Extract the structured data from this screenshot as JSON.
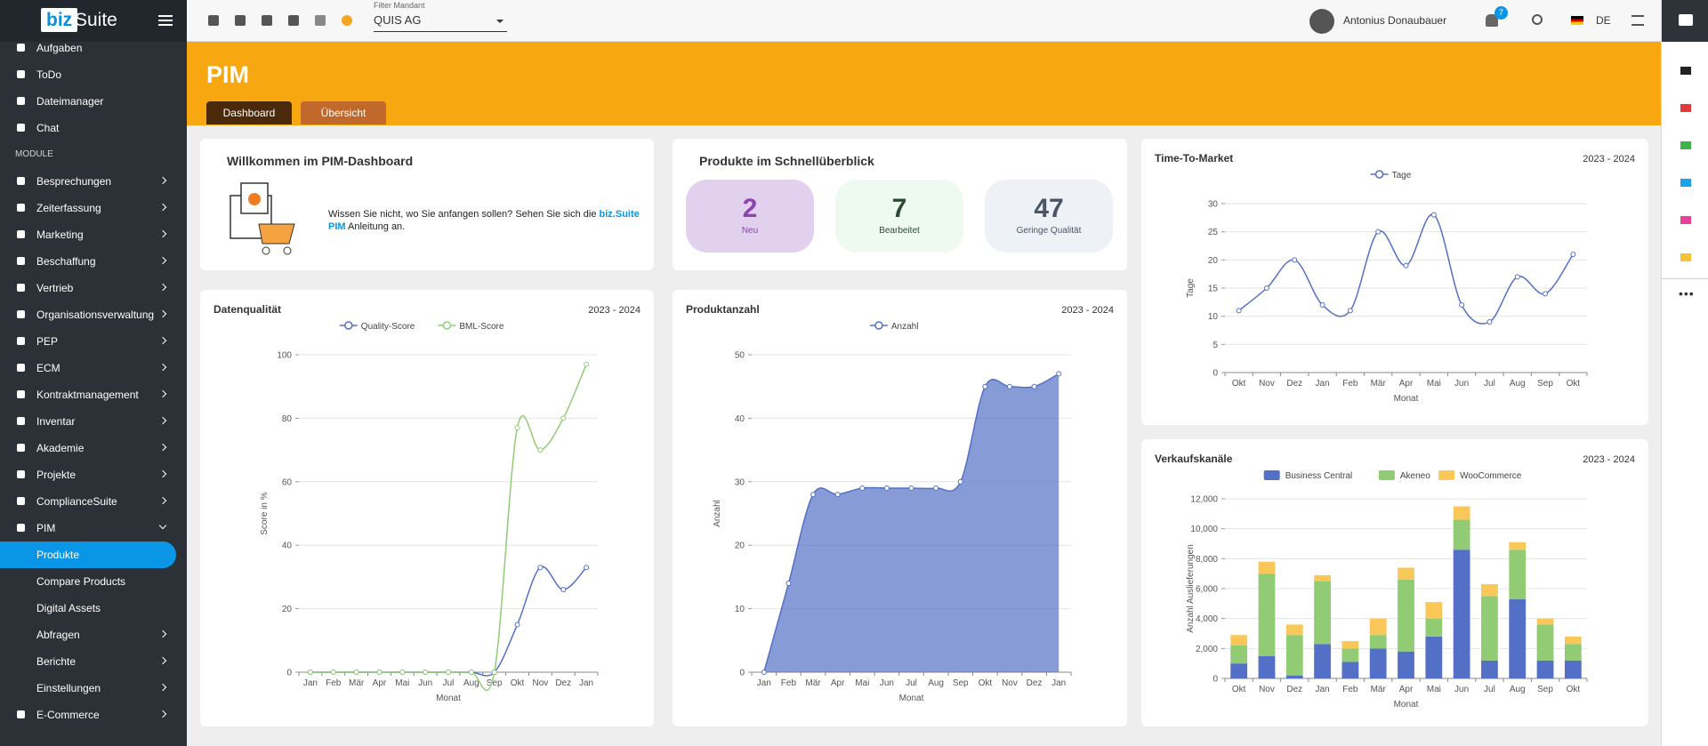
{
  "topbar": {
    "logo_left": "biz",
    "logo_right": "Suite",
    "filter_label": "Filter Mandant",
    "filter_value": "QUIS AG",
    "user": "Antonius Donaubauer",
    "notifications": "7",
    "language": "DE"
  },
  "sidebar": {
    "items": [
      {
        "label": "Aufgaben"
      },
      {
        "label": "ToDo"
      },
      {
        "label": "Dateimanager"
      },
      {
        "label": "Chat"
      },
      {
        "label": "MODULE",
        "section": true
      },
      {
        "label": "Besprechungen",
        "chevron": "right"
      },
      {
        "label": "Zeiterfassung",
        "chevron": "right"
      },
      {
        "label": "Marketing",
        "chevron": "right"
      },
      {
        "label": "Beschaffung",
        "chevron": "right"
      },
      {
        "label": "Vertrieb",
        "chevron": "right"
      },
      {
        "label": "Organisationsverwaltung",
        "chevron": "right"
      },
      {
        "label": "PEP",
        "chevron": "right"
      },
      {
        "label": "ECM",
        "chevron": "right"
      },
      {
        "label": "Kontraktmanagement",
        "chevron": "right"
      },
      {
        "label": "Inventar",
        "chevron": "right"
      },
      {
        "label": "Akademie",
        "chevron": "right"
      },
      {
        "label": "Projekte",
        "chevron": "right"
      },
      {
        "label": "ComplianceSuite",
        "chevron": "right"
      },
      {
        "label": "PIM",
        "chevron": "down"
      },
      {
        "label": "Produkte",
        "sub": true,
        "active": true
      },
      {
        "label": "Compare Products",
        "sub": true
      },
      {
        "label": "Digital Assets",
        "sub": true
      },
      {
        "label": "Abfragen",
        "sub": true,
        "chevron": "right"
      },
      {
        "label": "Berichte",
        "sub": true,
        "chevron": "right"
      },
      {
        "label": "Einstellungen",
        "sub": true,
        "chevron": "right"
      },
      {
        "label": "E-Commerce",
        "chevron": "right"
      }
    ]
  },
  "header": {
    "title": "PIM",
    "tabs": [
      "Dashboard",
      "Übersicht"
    ]
  },
  "welcome": {
    "title": "Willkommen im PIM-Dashboard",
    "text_before": "Wissen Sie nicht, wo Sie anfangen sollen? Sehen Sie sich die",
    "link": "biz.Suite PIM",
    "text_after": "Anleitung an."
  },
  "overview": {
    "title": "Produkte im Schnellüberblick",
    "stats": [
      {
        "value": 2,
        "label": "Neu"
      },
      {
        "value": 7,
        "label": "Bearbeitet"
      },
      {
        "value": 47,
        "label": "Geringe Qualität"
      }
    ]
  },
  "chart_data": [
    {
      "type": "line",
      "title": "Time-To-Market",
      "subtitle": "2023 - 2024",
      "legend": "top",
      "y_label": "Tage",
      "x_label": "Monat",
      "categories": [
        "Okt",
        "Nov",
        "Dez",
        "Jan",
        "Feb",
        "Mär",
        "Apr",
        "Mai",
        "Jun",
        "Jul",
        "Aug",
        "Sep",
        "Okt"
      ],
      "series": [
        {
          "name": "Tage",
          "color": "#5470c6",
          "values": [
            11,
            15,
            20,
            12,
            11,
            25,
            19,
            28,
            12,
            9,
            17,
            14,
            21
          ]
        }
      ],
      "ylim": [
        0,
        30
      ],
      "yticks": [
        0,
        5,
        10,
        15,
        20,
        25,
        30
      ],
      "grid": true
    },
    {
      "type": "line",
      "title": "Datenqualität",
      "subtitle": "2023 - 2024",
      "legend": "top",
      "y_label": "Score in %",
      "x_label": "Monat",
      "categories": [
        "Jan",
        "Feb",
        "Mär",
        "Apr",
        "Mai",
        "Jun",
        "Jul",
        "Aug",
        "Sep",
        "Okt",
        "Nov",
        "Dez",
        "Jan"
      ],
      "series": [
        {
          "name": "Quality-Score",
          "color": "#5470c6",
          "values": [
            0,
            0,
            0,
            0,
            0,
            0,
            0,
            0,
            0,
            15,
            33,
            26,
            33
          ]
        },
        {
          "name": "BML-Score",
          "color": "#91cc75",
          "values": [
            0,
            0,
            0,
            0,
            0,
            0,
            0,
            0,
            0,
            77,
            70,
            80,
            97
          ]
        }
      ],
      "ylim": [
        0,
        100
      ],
      "yticks": [
        0,
        20,
        40,
        60,
        80,
        100
      ],
      "grid": true
    },
    {
      "type": "area",
      "title": "Produktanzahl",
      "subtitle": "2023 - 2024",
      "legend": "top",
      "y_label": "Anzahl",
      "x_label": "Monat",
      "categories": [
        "Jan",
        "Feb",
        "Mär",
        "Apr",
        "Mai",
        "Jun",
        "Jul",
        "Aug",
        "Sep",
        "Okt",
        "Nov",
        "Dez",
        "Jan"
      ],
      "series": [
        {
          "name": "Anzahl",
          "color": "#5470c6",
          "values": [
            0,
            14,
            28,
            28,
            29,
            29,
            29,
            29,
            30,
            45,
            45,
            45,
            47
          ]
        }
      ],
      "ylim": [
        0,
        50
      ],
      "yticks": [
        0,
        10,
        20,
        30,
        40,
        50
      ],
      "grid": true
    },
    {
      "type": "stacked_bar",
      "title": "Verkaufskanäle",
      "subtitle": "2023 - 2024",
      "legend": "top",
      "y_label": "Anzahl Auslieferungen",
      "x_label": "Monat",
      "categories": [
        "Okt",
        "Nov",
        "Dez",
        "Jan",
        "Feb",
        "Mär",
        "Apr",
        "Mai",
        "Jun",
        "Jul",
        "Aug",
        "Sep",
        "Okt"
      ],
      "series": [
        {
          "name": "Business Central",
          "color": "#5470c6",
          "values": [
            1000,
            1500,
            200,
            2300,
            1100,
            2000,
            1800,
            2800,
            8600,
            1200,
            5300,
            1200,
            1200
          ]
        },
        {
          "name": "Akeneo",
          "color": "#91cc75",
          "values": [
            1200,
            5500,
            2700,
            4200,
            900,
            900,
            4800,
            1200,
            2000,
            4300,
            3300,
            2400,
            1100
          ]
        },
        {
          "name": "WooCommerce",
          "color": "#fac858",
          "values": [
            700,
            800,
            700,
            400,
            500,
            1100,
            800,
            1100,
            900,
            800,
            500,
            400,
            500
          ]
        }
      ],
      "ylim": [
        0,
        12000
      ],
      "yticks": [
        0,
        {
          "value": 2000,
          "label": "2,000"
        },
        {
          "value": 4000,
          "label": "4,000"
        },
        {
          "value": 6000,
          "label": "6,000"
        },
        {
          "value": 8000,
          "label": "8,000"
        },
        {
          "value": 10000,
          "label": "10,000"
        },
        {
          "value": 12000,
          "label": "12,000"
        }
      ],
      "grid": true
    }
  ]
}
